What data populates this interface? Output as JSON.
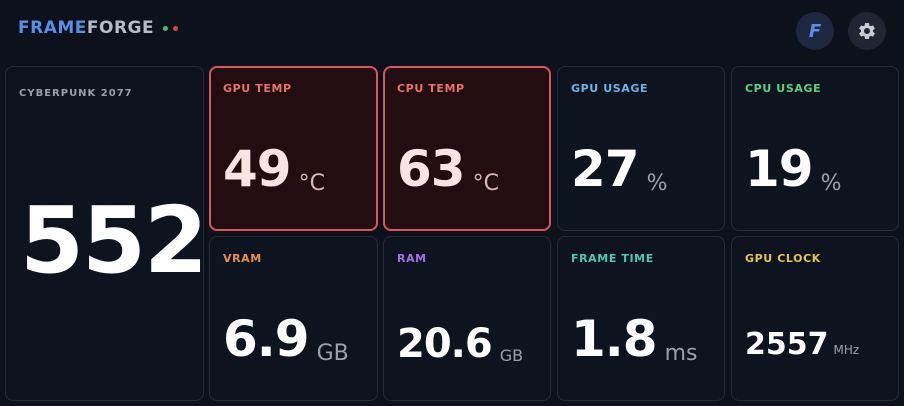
{
  "app": {
    "logo_part1": "FRAME",
    "logo_part2": "FORGE",
    "logo_dot_colors": [
      "#3fbf6a",
      "#d9443f"
    ],
    "profile_letter": "F"
  },
  "game": {
    "label": "CYBERPUNK 2077",
    "fps": "552"
  },
  "metrics": [
    {
      "label": "GPU TEMP",
      "value": "49",
      "unit": "°C",
      "label_color": "#e8716e",
      "alert": true
    },
    {
      "label": "CPU TEMP",
      "value": "63",
      "unit": "°C",
      "label_color": "#e8716e",
      "alert": true
    },
    {
      "label": "GPU USAGE",
      "value": "27",
      "unit": "%",
      "label_color": "#6fb2ea",
      "alert": false
    },
    {
      "label": "CPU USAGE",
      "value": "19",
      "unit": "%",
      "label_color": "#5fd07a",
      "alert": false
    },
    {
      "label": "VRAM",
      "value": "6.9",
      "unit": "GB",
      "label_color": "#e98f4a",
      "alert": false
    },
    {
      "label": "RAM",
      "value": "20.6",
      "unit": "GB",
      "label_color": "#a56ee8",
      "alert": false
    },
    {
      "label": "FRAME TIME",
      "value": "1.8",
      "unit": "ms",
      "label_color": "#4fc7b6",
      "alert": false
    },
    {
      "label": "GPU CLOCK",
      "value": "2557",
      "unit": "MHz",
      "label_color": "#e6c44f",
      "alert": false
    }
  ]
}
